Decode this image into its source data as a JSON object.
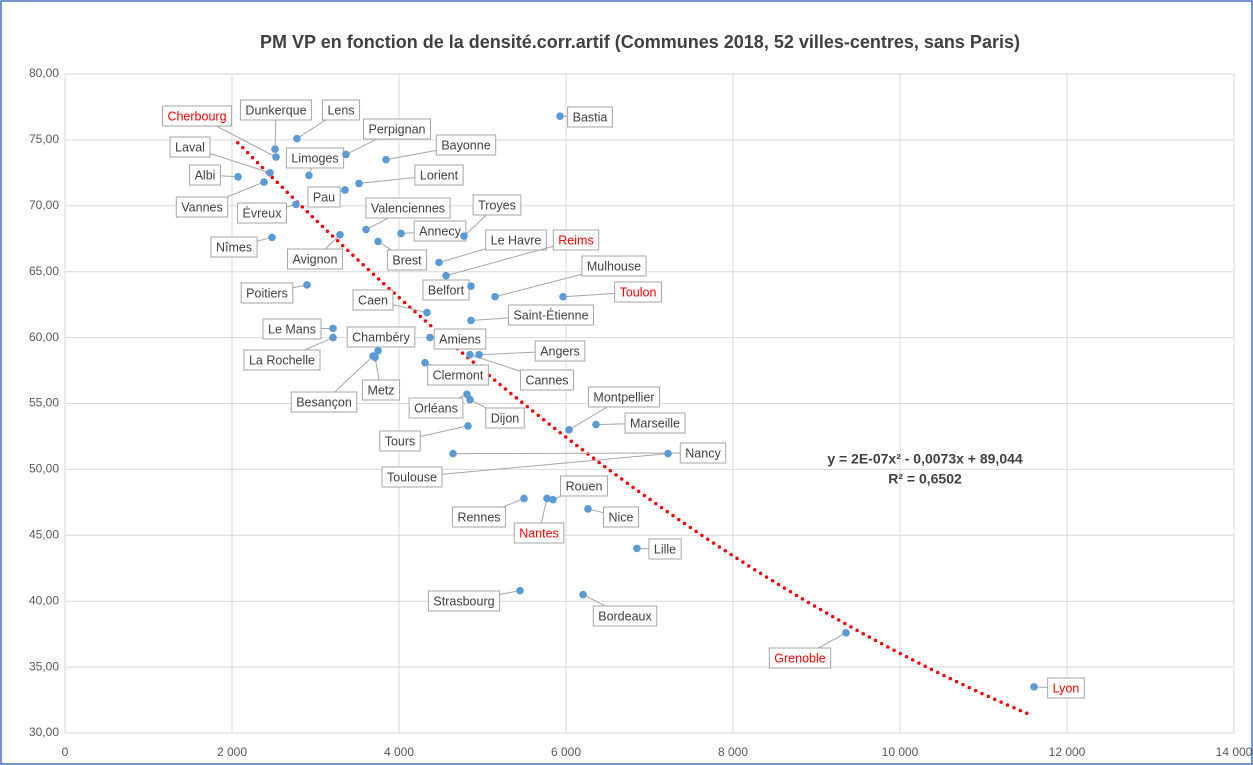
{
  "chart_data": {
    "type": "scatter",
    "title": "PM VP en fonction de la densité.corr.artif (Communes 2018, 52 villes-centres, sans Paris)",
    "labels": [
      "Bastia",
      "Dunkerque",
      "Lens",
      "Cherbourg",
      "Limoges",
      "Perpignan",
      "Bayonne",
      "Laval",
      "Albi",
      "Vannes",
      "Lorient",
      "Pau",
      "Évreux",
      "Valenciennes",
      "Troyes",
      "Annecy",
      "Nîmes",
      "Avignon",
      "Brest",
      "Le Havre",
      "Reims",
      "Belfort",
      "Mulhouse",
      "Toulon",
      "Poitiers",
      "Caen",
      "Saint-Étienne",
      "Le Mans",
      "La Rochelle",
      "Amiens",
      "Chambéry",
      "Besançon",
      "Metz",
      "Angers",
      "Cannes",
      "Clermont",
      "Orléans",
      "Dijon",
      "Montpellier",
      "Marseille",
      "Tours",
      "Toulouse",
      "Nancy",
      "Rennes",
      "Nantes",
      "Rouen",
      "Nice",
      "Lille",
      "Strasbourg",
      "Bordeaux",
      "Grenoble",
      "Lyon"
    ],
    "x": [
      5928,
      2515,
      2778,
      2527,
      2922,
      3365,
      3844,
      2455,
      2072,
      2383,
      3521,
      3353,
      2766,
      3605,
      4778,
      4024,
      2479,
      3293,
      3749,
      4479,
      4563,
      4862,
      5150,
      5964,
      2898,
      4335,
      4862,
      3210,
      3210,
      4371,
      3749,
      3689,
      3713,
      4958,
      4850,
      4311,
      4814,
      4850,
      6036,
      6359,
      4826,
      7222,
      4647,
      5497,
      5772,
      5844,
      6263,
      6850,
      5449,
      6204,
      9353,
      11605
    ],
    "values": [
      76.8,
      74.3,
      75.1,
      73.7,
      72.3,
      73.9,
      73.5,
      72.5,
      72.2,
      71.8,
      71.7,
      71.2,
      70.1,
      68.2,
      67.7,
      67.9,
      67.6,
      67.8,
      67.3,
      65.7,
      64.7,
      63.9,
      63.1,
      63.1,
      64.0,
      61.9,
      61.3,
      60.7,
      60.0,
      60.0,
      59.0,
      58.6,
      58.5,
      58.7,
      58.7,
      58.1,
      55.7,
      55.3,
      53.0,
      53.4,
      53.3,
      51.2,
      51.2,
      47.8,
      47.8,
      47.7,
      47.0,
      44.0,
      40.8,
      40.5,
      37.6,
      33.5
    ],
    "color": "#5b9bd5",
    "label_colors": [
      "#404040",
      "#404040",
      "#404040",
      "#ff0000",
      "#404040",
      "#404040",
      "#404040",
      "#404040",
      "#404040",
      "#404040",
      "#404040",
      "#404040",
      "#404040",
      "#404040",
      "#404040",
      "#404040",
      "#404040",
      "#404040",
      "#404040",
      "#404040",
      "#ff0000",
      "#404040",
      "#404040",
      "#ff0000",
      "#404040",
      "#404040",
      "#404040",
      "#404040",
      "#404040",
      "#404040",
      "#404040",
      "#404040",
      "#404040",
      "#404040",
      "#404040",
      "#404040",
      "#404040",
      "#404040",
      "#404040",
      "#404040",
      "#404040",
      "#404040",
      "#404040",
      "#404040",
      "#ff0000",
      "#404040",
      "#404040",
      "#404040",
      "#404040",
      "#404040",
      "#ff0000",
      "#ff0000"
    ],
    "trendline": {
      "coefficients": [
        2e-07,
        -0.0073,
        89.044
      ],
      "xrange": [
        2070,
        11550
      ],
      "color": "#ff0000",
      "equation": "y = 2E-07x² - 0,0073x + 89,044",
      "r2_label": "R² = 0,6502"
    },
    "xlim": [
      0,
      14000
    ],
    "xticks": [
      0,
      {
        "value": 2000,
        "label": "2 000"
      },
      {
        "value": 4000,
        "label": "4 000"
      },
      {
        "value": 6000,
        "label": "6 000"
      },
      {
        "value": 8000,
        "label": "8 000"
      },
      {
        "value": 10000,
        "label": "10 000"
      },
      {
        "value": 12000,
        "label": "12 000"
      },
      {
        "value": 14000,
        "label": "14 000"
      }
    ],
    "ylim": [
      30,
      80
    ],
    "yticks": [
      {
        "value": 30,
        "label": "30,00"
      },
      {
        "value": 35,
        "label": "35,00"
      },
      {
        "value": 40,
        "label": "40,00"
      },
      {
        "value": 45,
        "label": "45,00"
      },
      {
        "value": 50,
        "label": "50,00"
      },
      {
        "value": 55,
        "label": "55,00"
      },
      {
        "value": 60,
        "label": "60,00"
      },
      {
        "value": 65,
        "label": "65,00"
      },
      {
        "value": 70,
        "label": "70,00"
      },
      {
        "value": 75,
        "label": "75,00"
      },
      {
        "value": 80,
        "label": "80,00"
      }
    ],
    "grid": true
  }
}
